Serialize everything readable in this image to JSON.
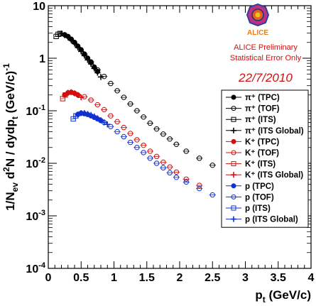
{
  "chart_data": {
    "type": "scatter",
    "xlabel": "p_t (GeV/c)",
    "ylabel": "1/N_ev d²N / dydp_t (GeV/c)^-1",
    "xlim": [
      0,
      4
    ],
    "ylim": [
      0.0001,
      10
    ],
    "yscale": "log",
    "x_ticks": [
      "0",
      "0.5",
      "1",
      "1.5",
      "2",
      "2.5",
      "3",
      "3.5",
      "4"
    ],
    "y_ticks": [
      "10^-4",
      "10^-3",
      "10^-2",
      "10^-1",
      "1",
      "10"
    ],
    "grid": false,
    "legend_position": "right",
    "annotations": {
      "logo_text": "ALICE",
      "preliminary": "ALICE Preliminary",
      "stat_error": "Statistical Error Only",
      "date": "22/7/2010"
    },
    "colors": {
      "pion": "#000000",
      "kaon": "#d01010",
      "proton": "#1030d0"
    },
    "series": [
      {
        "name": "π⁺ (TPC)",
        "species": "pion",
        "marker": "filled-circle",
        "x": [
          0.25,
          0.3,
          0.35,
          0.4,
          0.45,
          0.5,
          0.55,
          0.6,
          0.65,
          0.7,
          0.75
        ],
        "y": [
          2.8,
          2.6,
          2.3,
          2.0,
          1.7,
          1.45,
          1.2,
          1.0,
          0.83,
          0.68,
          0.56
        ]
      },
      {
        "name": "π⁺ (TOF)",
        "species": "pion",
        "marker": "open-circle",
        "x": [
          0.55,
          0.65,
          0.75,
          0.85,
          0.95,
          1.05,
          1.15,
          1.25,
          1.35,
          1.45,
          1.55,
          1.65,
          1.75,
          1.85,
          1.95,
          2.1,
          2.3,
          2.5
        ],
        "y": [
          1.2,
          0.85,
          0.6,
          0.45,
          0.33,
          0.24,
          0.18,
          0.135,
          0.1,
          0.076,
          0.058,
          0.045,
          0.036,
          0.029,
          0.023,
          0.017,
          0.0125,
          0.0092
        ]
      },
      {
        "name": "π⁺ (ITS)",
        "species": "pion",
        "marker": "open-square",
        "x": [
          0.12,
          0.15,
          0.18
        ],
        "y": [
          2.6,
          2.85,
          2.95
        ]
      },
      {
        "name": "π⁺ (ITS Global)",
        "species": "pion",
        "marker": "cross",
        "x": [
          0.2,
          0.25,
          0.3,
          0.35,
          0.4,
          0.45,
          0.5,
          0.55,
          0.6,
          0.65,
          0.7,
          0.75,
          0.8
        ],
        "y": [
          2.95,
          2.75,
          2.5,
          2.2,
          1.9,
          1.6,
          1.35,
          1.12,
          0.93,
          0.78,
          0.64,
          0.53,
          0.44
        ]
      },
      {
        "name": "K⁺ (TPC)",
        "species": "kaon",
        "marker": "filled-circle",
        "x": [
          0.25,
          0.3,
          0.35,
          0.4,
          0.45
        ],
        "y": [
          0.2,
          0.22,
          0.225,
          0.215,
          0.2
        ]
      },
      {
        "name": "K⁺ (TOF)",
        "species": "kaon",
        "marker": "open-circle",
        "x": [
          0.55,
          0.65,
          0.75,
          0.85,
          0.95,
          1.05,
          1.15,
          1.25,
          1.35,
          1.45,
          1.55,
          1.65,
          1.75,
          1.85,
          1.95,
          2.1,
          2.3
        ],
        "y": [
          0.185,
          0.16,
          0.13,
          0.105,
          0.08,
          0.062,
          0.048,
          0.037,
          0.028,
          0.022,
          0.017,
          0.0135,
          0.0105,
          0.0085,
          0.0068,
          0.005,
          0.0038
        ]
      },
      {
        "name": "K⁺ (ITS)",
        "species": "kaon",
        "marker": "open-square",
        "x": [
          0.22,
          0.26
        ],
        "y": [
          0.17,
          0.2
        ]
      },
      {
        "name": "K⁺ (ITS Global)",
        "species": "kaon",
        "marker": "cross",
        "x": [
          0.3,
          0.35,
          0.4,
          0.45,
          0.5
        ],
        "y": [
          0.22,
          0.225,
          0.215,
          0.2,
          0.18
        ]
      },
      {
        "name": "p (TPC)",
        "species": "proton",
        "marker": "filled-circle",
        "x": [
          0.45,
          0.5,
          0.55,
          0.6,
          0.65,
          0.7,
          0.75,
          0.8
        ],
        "y": [
          0.085,
          0.09,
          0.088,
          0.085,
          0.08,
          0.075,
          0.07,
          0.065
        ]
      },
      {
        "name": "p (TOF)",
        "species": "proton",
        "marker": "open-circle",
        "x": [
          0.85,
          0.95,
          1.05,
          1.15,
          1.25,
          1.35,
          1.45,
          1.55,
          1.65,
          1.75,
          1.85,
          1.95,
          2.1,
          2.3,
          2.5
        ],
        "y": [
          0.06,
          0.05,
          0.04,
          0.032,
          0.025,
          0.02,
          0.016,
          0.0125,
          0.01,
          0.0082,
          0.0066,
          0.0054,
          0.0044,
          0.0033,
          0.0025
        ]
      },
      {
        "name": "p (ITS)",
        "species": "proton",
        "marker": "open-square",
        "x": [
          0.38,
          0.42
        ],
        "y": [
          0.07,
          0.08
        ]
      },
      {
        "name": "p (ITS Global)",
        "species": "proton",
        "marker": "cross",
        "x": [
          0.45,
          0.5,
          0.55,
          0.6,
          0.65,
          0.7,
          0.75,
          0.8,
          0.85,
          0.9
        ],
        "y": [
          0.085,
          0.09,
          0.09,
          0.087,
          0.083,
          0.078,
          0.072,
          0.066,
          0.06,
          0.055
        ]
      }
    ]
  }
}
